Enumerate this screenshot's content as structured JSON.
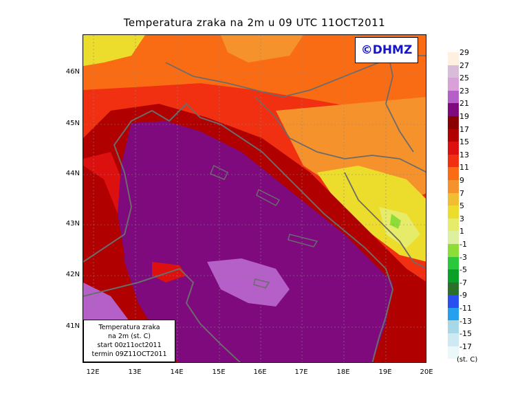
{
  "title": "Temperatura zraka na 2m u 09 UTC 11OCT2011",
  "logo": "©DHMZ",
  "info_box": {
    "line1": "Temperatura zraka",
    "line2": "na 2m (st. C)",
    "line3": "start 00z11oct2011",
    "line4": "termin 09Z11OCT2011"
  },
  "lat_labels": [
    "46N",
    "45N",
    "44N",
    "43N",
    "42N",
    "41N"
  ],
  "lon_labels": [
    "12E",
    "13E",
    "14E",
    "15E",
    "16E",
    "17E",
    "18E",
    "19E",
    "20E"
  ],
  "legend": {
    "labels": [
      "29",
      "27",
      "25",
      "23",
      "21",
      "19",
      "17",
      "15",
      "13",
      "11",
      "9",
      "7",
      "5",
      "3",
      "1",
      "-1",
      "-3",
      "-5",
      "-7",
      "-9",
      "-11",
      "-13",
      "-15",
      "-17"
    ],
    "colors": [
      "#fff0e0",
      "#d8bcd8",
      "#d9a0d9",
      "#b55fc8",
      "#7e0a7e",
      "#8a0000",
      "#b00000",
      "#dd1010",
      "#f03010",
      "#fa6c14",
      "#f5922c",
      "#f0be30",
      "#ecdc2c",
      "#e6eb6a",
      "#dcf0a0",
      "#8edc38",
      "#2ac83a",
      "#0aa028",
      "#2a6f2a",
      "#2850f0",
      "#24a0ee",
      "#a8d8e8",
      "#cdeaf2",
      "#ebf8fa"
    ],
    "unit": "(st. C)"
  }
}
